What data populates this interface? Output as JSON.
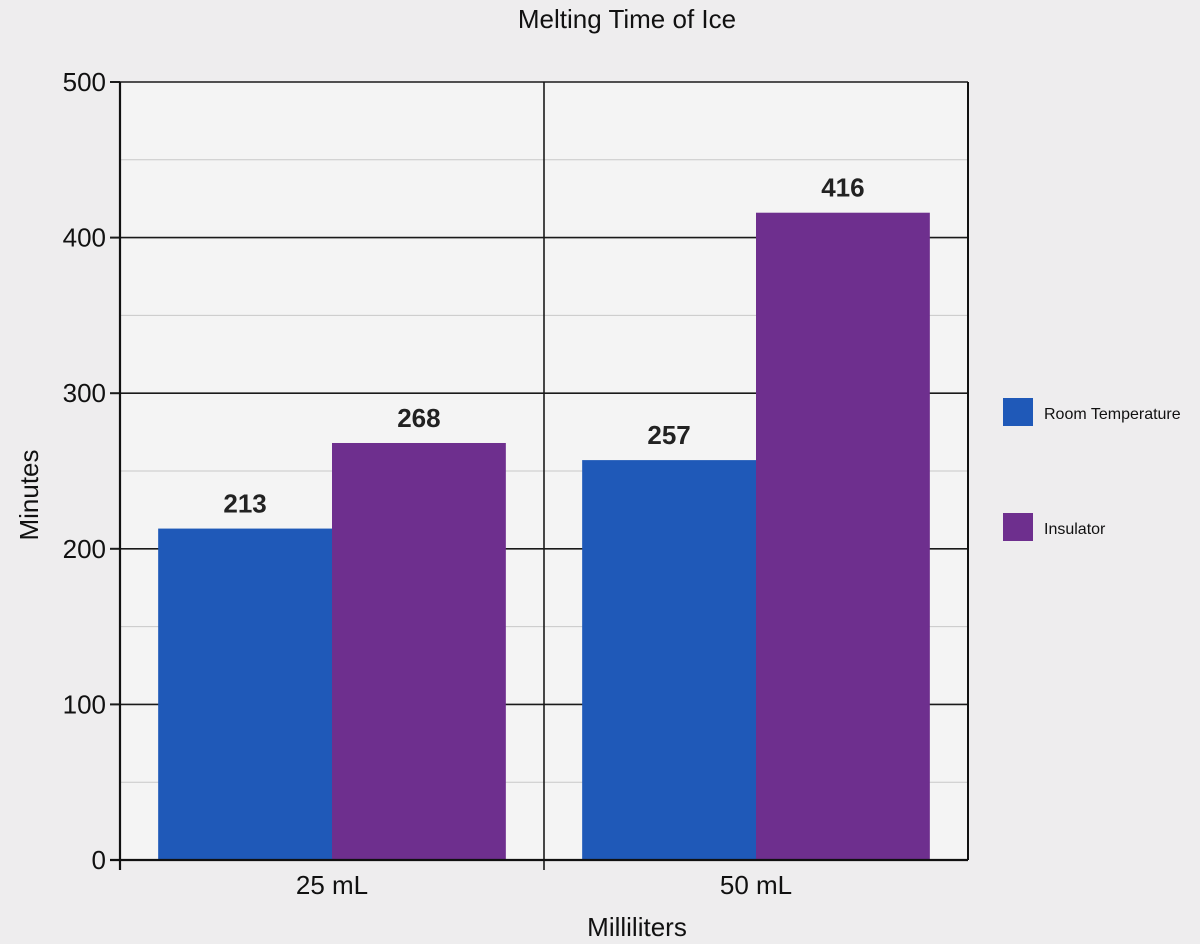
{
  "chart_data": {
    "type": "bar",
    "title": "Melting Time of Ice",
    "xlabel": "Milliliters",
    "ylabel": "Minutes",
    "categories": [
      "25 mL",
      "50 mL"
    ],
    "series": [
      {
        "name": "Room Temperature",
        "values": [
          213,
          257
        ],
        "color": "#1f59b8"
      },
      {
        "name": "Insulator",
        "values": [
          268,
          416
        ],
        "color": "#6e2f8e"
      }
    ],
    "ylim": [
      0,
      500
    ],
    "yticks": [
      0,
      100,
      200,
      300,
      400,
      500
    ],
    "grid": true,
    "legend": "right"
  }
}
